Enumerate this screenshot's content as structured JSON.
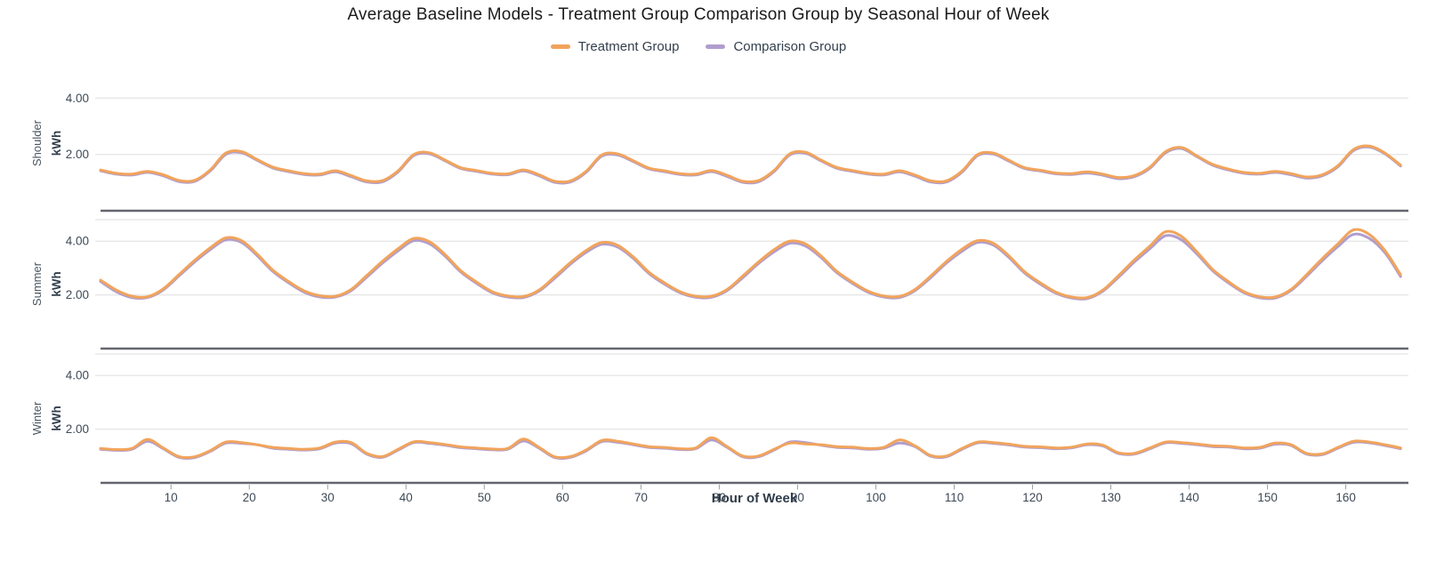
{
  "title": "Average Baseline Models - Treatment Group Comparison Group by Seasonal Hour of Week",
  "legend": {
    "items": [
      {
        "label": "Treatment Group",
        "color": "#f1a45c"
      },
      {
        "label": "Comparison Group",
        "color": "#b09dce"
      }
    ]
  },
  "colors": {
    "treatment": "#f1a45c",
    "comparison": "#b09dce",
    "gridline": "#e8e8e8",
    "facet_axis_dark": "#64676e",
    "tick_mark": "#9aa0a6",
    "tick_text": "#3e4a57",
    "facet_label_text": "#4a5560",
    "title_text": "#1b1b1b"
  },
  "chart_data": {
    "type": "line",
    "title": "Average Baseline Models - Treatment Group Comparison Group by Seasonal Hour of Week",
    "xlabel": "Hour of Week",
    "ylabel": "kWh",
    "legend_position": "top",
    "grid": true,
    "xlim": [
      1,
      168
    ],
    "ylim": [
      0,
      4.8
    ],
    "x_ticks": [
      10,
      20,
      30,
      40,
      50,
      60,
      70,
      80,
      90,
      100,
      110,
      120,
      130,
      140,
      150,
      160
    ],
    "y_ticks": [
      2,
      4
    ],
    "y_tick_labels": [
      "2.00",
      "4.00"
    ],
    "x": [
      1,
      3,
      5,
      7,
      9,
      11,
      13,
      15,
      17,
      19,
      21,
      23,
      25,
      27,
      29,
      31,
      33,
      35,
      37,
      39,
      41,
      43,
      45,
      47,
      49,
      51,
      53,
      55,
      57,
      59,
      61,
      63,
      65,
      67,
      69,
      71,
      73,
      75,
      77,
      79,
      81,
      83,
      85,
      87,
      89,
      91,
      93,
      95,
      97,
      99,
      101,
      103,
      105,
      107,
      109,
      111,
      113,
      115,
      117,
      119,
      121,
      123,
      125,
      127,
      129,
      131,
      133,
      135,
      137,
      139,
      141,
      143,
      145,
      147,
      149,
      151,
      153,
      155,
      157,
      159,
      161,
      163,
      165,
      167
    ],
    "facets": [
      {
        "label": "Shoulder",
        "ylabel": "kWh",
        "series": [
          {
            "name": "Treatment Group",
            "color": "#f1a45c",
            "values": [
              1.45,
              1.33,
              1.3,
              1.4,
              1.28,
              1.08,
              1.08,
              1.45,
              2.05,
              2.1,
              1.82,
              1.55,
              1.42,
              1.32,
              1.3,
              1.42,
              1.25,
              1.06,
              1.07,
              1.42,
              2.0,
              2.06,
              1.8,
              1.53,
              1.43,
              1.33,
              1.31,
              1.45,
              1.28,
              1.05,
              1.06,
              1.4,
              1.98,
              2.02,
              1.78,
              1.52,
              1.42,
              1.32,
              1.3,
              1.43,
              1.26,
              1.05,
              1.07,
              1.43,
              2.02,
              2.08,
              1.8,
              1.54,
              1.43,
              1.33,
              1.3,
              1.42,
              1.27,
              1.06,
              1.06,
              1.41,
              2.0,
              2.05,
              1.79,
              1.53,
              1.44,
              1.34,
              1.32,
              1.38,
              1.3,
              1.18,
              1.25,
              1.55,
              2.1,
              2.25,
              1.95,
              1.65,
              1.48,
              1.36,
              1.33,
              1.4,
              1.32,
              1.2,
              1.28,
              1.6,
              2.18,
              2.3,
              2.05,
              1.62
            ]
          },
          {
            "name": "Comparison Group",
            "color": "#b09dce",
            "values": [
              1.42,
              1.3,
              1.27,
              1.36,
              1.24,
              1.04,
              1.04,
              1.41,
              2.0,
              2.06,
              1.79,
              1.52,
              1.39,
              1.29,
              1.27,
              1.38,
              1.21,
              1.02,
              1.03,
              1.38,
              1.96,
              2.02,
              1.77,
              1.5,
              1.4,
              1.3,
              1.28,
              1.41,
              1.24,
              1.01,
              1.02,
              1.36,
              1.94,
              1.98,
              1.75,
              1.49,
              1.39,
              1.29,
              1.27,
              1.39,
              1.22,
              1.01,
              1.03,
              1.39,
              1.98,
              2.04,
              1.77,
              1.51,
              1.4,
              1.3,
              1.27,
              1.38,
              1.23,
              1.02,
              1.02,
              1.37,
              1.96,
              2.01,
              1.76,
              1.5,
              1.41,
              1.31,
              1.29,
              1.34,
              1.26,
              1.14,
              1.21,
              1.51,
              2.06,
              2.21,
              1.92,
              1.62,
              1.45,
              1.33,
              1.3,
              1.36,
              1.28,
              1.16,
              1.24,
              1.56,
              2.14,
              2.26,
              2.02,
              1.59
            ]
          }
        ]
      },
      {
        "label": "Summer",
        "ylabel": "kWh",
        "series": [
          {
            "name": "Treatment Group",
            "color": "#f1a45c",
            "values": [
              2.55,
              2.18,
              1.95,
              1.93,
              2.22,
              2.75,
              3.28,
              3.75,
              4.12,
              4.02,
              3.52,
              2.92,
              2.5,
              2.15,
              1.97,
              1.95,
              2.2,
              2.72,
              3.25,
              3.72,
              4.1,
              3.98,
              3.5,
              2.9,
              2.48,
              2.12,
              1.96,
              1.94,
              2.18,
              2.68,
              3.2,
              3.65,
              3.95,
              3.85,
              3.42,
              2.85,
              2.45,
              2.12,
              1.95,
              1.95,
              2.2,
              2.7,
              3.22,
              3.68,
              4.0,
              3.9,
              3.45,
              2.88,
              2.48,
              2.14,
              1.96,
              1.94,
              2.2,
              2.7,
              3.24,
              3.7,
              4.02,
              3.92,
              3.45,
              2.86,
              2.45,
              2.1,
              1.92,
              1.9,
              2.18,
              2.72,
              3.3,
              3.82,
              4.35,
              4.18,
              3.6,
              2.95,
              2.5,
              2.12,
              1.93,
              1.92,
              2.2,
              2.75,
              3.35,
              3.9,
              4.42,
              4.25,
              3.65,
              2.75
            ]
          },
          {
            "name": "Comparison Group",
            "color": "#b09dce",
            "values": [
              2.5,
              2.12,
              1.9,
              1.9,
              2.18,
              2.7,
              3.22,
              3.68,
              4.05,
              3.95,
              3.46,
              2.87,
              2.45,
              2.1,
              1.92,
              1.92,
              2.16,
              2.66,
              3.18,
              3.64,
              4.02,
              3.9,
              3.44,
              2.85,
              2.43,
              2.08,
              1.92,
              1.9,
              2.14,
              2.62,
              3.14,
              3.58,
              3.88,
              3.78,
              3.36,
              2.8,
              2.4,
              2.08,
              1.91,
              1.91,
              2.16,
              2.64,
              3.16,
              3.6,
              3.92,
              3.82,
              3.39,
              2.83,
              2.43,
              2.1,
              1.92,
              1.9,
              2.16,
              2.64,
              3.18,
              3.62,
              3.95,
              3.85,
              3.39,
              2.81,
              2.4,
              2.06,
              1.88,
              1.86,
              2.14,
              2.66,
              3.22,
              3.72,
              4.2,
              4.05,
              3.52,
              2.9,
              2.45,
              2.08,
              1.89,
              1.88,
              2.16,
              2.69,
              3.27,
              3.8,
              4.25,
              4.1,
              3.57,
              2.68
            ]
          }
        ]
      },
      {
        "label": "Winter",
        "ylabel": "kWh",
        "series": [
          {
            "name": "Treatment Group",
            "color": "#f1a45c",
            "values": [
              1.28,
              1.24,
              1.28,
              1.62,
              1.3,
              0.98,
              0.97,
              1.2,
              1.52,
              1.5,
              1.42,
              1.32,
              1.28,
              1.25,
              1.3,
              1.52,
              1.5,
              1.1,
              0.98,
              1.25,
              1.53,
              1.5,
              1.43,
              1.34,
              1.3,
              1.26,
              1.28,
              1.63,
              1.32,
              0.97,
              0.98,
              1.22,
              1.58,
              1.55,
              1.45,
              1.35,
              1.32,
              1.27,
              1.3,
              1.68,
              1.35,
              1.0,
              1.0,
              1.25,
              1.48,
              1.45,
              1.42,
              1.35,
              1.33,
              1.28,
              1.32,
              1.6,
              1.38,
              1.02,
              1.0,
              1.28,
              1.52,
              1.5,
              1.44,
              1.36,
              1.34,
              1.3,
              1.33,
              1.45,
              1.4,
              1.12,
              1.1,
              1.3,
              1.52,
              1.5,
              1.45,
              1.38,
              1.36,
              1.3,
              1.32,
              1.48,
              1.42,
              1.1,
              1.08,
              1.32,
              1.55,
              1.52,
              1.42,
              1.3
            ]
          },
          {
            "name": "Comparison Group",
            "color": "#b09dce",
            "values": [
              1.25,
              1.21,
              1.25,
              1.55,
              1.27,
              0.95,
              0.94,
              1.17,
              1.48,
              1.47,
              1.42,
              1.29,
              1.25,
              1.22,
              1.27,
              1.48,
              1.46,
              1.07,
              0.95,
              1.22,
              1.5,
              1.47,
              1.4,
              1.31,
              1.27,
              1.23,
              1.25,
              1.56,
              1.29,
              0.94,
              0.95,
              1.19,
              1.54,
              1.51,
              1.42,
              1.32,
              1.29,
              1.24,
              1.27,
              1.6,
              1.32,
              0.97,
              0.97,
              1.22,
              1.52,
              1.5,
              1.4,
              1.32,
              1.3,
              1.25,
              1.29,
              1.48,
              1.35,
              0.99,
              0.97,
              1.25,
              1.49,
              1.47,
              1.41,
              1.33,
              1.31,
              1.27,
              1.3,
              1.42,
              1.37,
              1.09,
              1.07,
              1.27,
              1.49,
              1.47,
              1.42,
              1.35,
              1.33,
              1.27,
              1.29,
              1.44,
              1.39,
              1.07,
              1.05,
              1.29,
              1.51,
              1.49,
              1.39,
              1.27
            ]
          }
        ]
      }
    ]
  }
}
